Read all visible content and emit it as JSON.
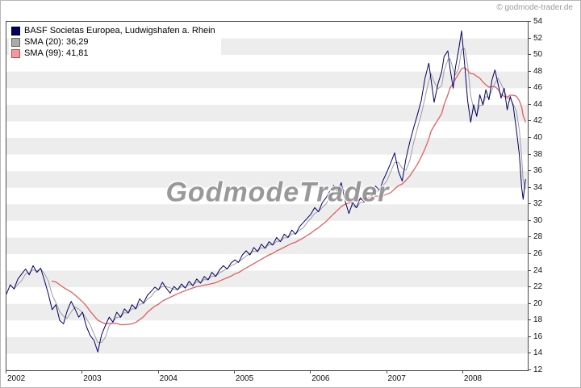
{
  "page": {
    "copyright": "© godmode-trader.de"
  },
  "legend": {
    "items": [
      {
        "label": "BASF Societas Europea, Ludwigshafen a. Rhein",
        "swatch_fill": "#000066",
        "swatch_border": "#000000"
      },
      {
        "label": "SMA (20): 36,29",
        "swatch_fill": "#aaaaaa",
        "swatch_border": "#666666"
      },
      {
        "label": "SMA (99): 41,81",
        "swatch_fill": "#f09a9a",
        "swatch_border": "#cc4444"
      }
    ]
  },
  "chart_data": {
    "type": "line",
    "title": "BASF Societas Europea, Ludwigshafen a. Rhein",
    "xlabel": "",
    "ylabel": "",
    "ylim": [
      12,
      54
    ],
    "y_tick_step": 2,
    "xlim": [
      2002,
      2008.85
    ],
    "x_ticks": [
      2002,
      2003,
      2004,
      2005,
      2006,
      2007,
      2008
    ],
    "grid": "horizontal-bands",
    "band_colors": [
      "#ffffff",
      "#ededed"
    ],
    "legend_position": "top-left",
    "watermark": "GodmodeTrader",
    "series": [
      {
        "name": "BASF Societas Europea, Ludwigshafen a. Rhein",
        "color": "#000066",
        "width": 1,
        "points": [
          [
            2002.0,
            21.2
          ],
          [
            2002.05,
            22.3
          ],
          [
            2002.1,
            21.8
          ],
          [
            2002.15,
            23.0
          ],
          [
            2002.2,
            23.6
          ],
          [
            2002.25,
            24.2
          ],
          [
            2002.3,
            23.5
          ],
          [
            2002.35,
            24.6
          ],
          [
            2002.4,
            23.8
          ],
          [
            2002.45,
            24.3
          ],
          [
            2002.5,
            22.8
          ],
          [
            2002.55,
            21.2
          ],
          [
            2002.6,
            19.3
          ],
          [
            2002.65,
            19.9
          ],
          [
            2002.7,
            18.0
          ],
          [
            2002.75,
            17.6
          ],
          [
            2002.8,
            19.2
          ],
          [
            2002.85,
            20.3
          ],
          [
            2002.9,
            19.4
          ],
          [
            2002.95,
            18.4
          ],
          [
            2003.0,
            19.0
          ],
          [
            2003.05,
            17.3
          ],
          [
            2003.1,
            16.2
          ],
          [
            2003.15,
            15.6
          ],
          [
            2003.2,
            14.2
          ],
          [
            2003.25,
            16.3
          ],
          [
            2003.3,
            17.4
          ],
          [
            2003.35,
            18.4
          ],
          [
            2003.4,
            17.8
          ],
          [
            2003.45,
            19.0
          ],
          [
            2003.5,
            18.4
          ],
          [
            2003.55,
            19.4
          ],
          [
            2003.6,
            18.9
          ],
          [
            2003.65,
            19.9
          ],
          [
            2003.7,
            19.4
          ],
          [
            2003.75,
            20.6
          ],
          [
            2003.8,
            20.1
          ],
          [
            2003.85,
            21.0
          ],
          [
            2003.9,
            21.5
          ],
          [
            2003.95,
            22.0
          ],
          [
            2004.0,
            21.7
          ],
          [
            2004.05,
            22.6
          ],
          [
            2004.1,
            21.9
          ],
          [
            2004.15,
            21.3
          ],
          [
            2004.2,
            22.1
          ],
          [
            2004.25,
            21.7
          ],
          [
            2004.3,
            22.4
          ],
          [
            2004.35,
            21.9
          ],
          [
            2004.4,
            22.7
          ],
          [
            2004.45,
            22.2
          ],
          [
            2004.5,
            23.0
          ],
          [
            2004.55,
            22.5
          ],
          [
            2004.6,
            23.3
          ],
          [
            2004.65,
            22.9
          ],
          [
            2004.7,
            23.8
          ],
          [
            2004.75,
            23.3
          ],
          [
            2004.8,
            24.1
          ],
          [
            2004.85,
            24.6
          ],
          [
            2004.9,
            24.2
          ],
          [
            2004.95,
            24.9
          ],
          [
            2005.0,
            25.3
          ],
          [
            2005.05,
            25.0
          ],
          [
            2005.1,
            25.9
          ],
          [
            2005.15,
            26.4
          ],
          [
            2005.2,
            25.9
          ],
          [
            2005.25,
            26.8
          ],
          [
            2005.3,
            26.3
          ],
          [
            2005.35,
            27.2
          ],
          [
            2005.4,
            26.7
          ],
          [
            2005.45,
            27.5
          ],
          [
            2005.5,
            27.1
          ],
          [
            2005.55,
            28.0
          ],
          [
            2005.6,
            27.5
          ],
          [
            2005.65,
            28.4
          ],
          [
            2005.7,
            28.0
          ],
          [
            2005.75,
            28.9
          ],
          [
            2005.8,
            28.4
          ],
          [
            2005.85,
            29.3
          ],
          [
            2005.9,
            29.8
          ],
          [
            2005.95,
            30.3
          ],
          [
            2006.0,
            30.8
          ],
          [
            2006.05,
            31.6
          ],
          [
            2006.1,
            31.1
          ],
          [
            2006.15,
            32.2
          ],
          [
            2006.2,
            32.8
          ],
          [
            2006.25,
            33.6
          ],
          [
            2006.3,
            34.3
          ],
          [
            2006.35,
            33.5
          ],
          [
            2006.4,
            34.6
          ],
          [
            2006.45,
            32.4
          ],
          [
            2006.5,
            30.9
          ],
          [
            2006.55,
            32.2
          ],
          [
            2006.6,
            31.6
          ],
          [
            2006.65,
            32.8
          ],
          [
            2006.7,
            32.3
          ],
          [
            2006.75,
            33.4
          ],
          [
            2006.8,
            33.0
          ],
          [
            2006.85,
            34.2
          ],
          [
            2006.9,
            33.7
          ],
          [
            2006.95,
            34.9
          ],
          [
            2007.0,
            35.9
          ],
          [
            2007.05,
            37.0
          ],
          [
            2007.1,
            38.2
          ],
          [
            2007.15,
            36.0
          ],
          [
            2007.2,
            34.8
          ],
          [
            2007.25,
            37.5
          ],
          [
            2007.3,
            39.5
          ],
          [
            2007.35,
            41.2
          ],
          [
            2007.4,
            42.8
          ],
          [
            2007.45,
            44.5
          ],
          [
            2007.5,
            47.2
          ],
          [
            2007.55,
            49.0
          ],
          [
            2007.58,
            47.0
          ],
          [
            2007.62,
            44.3
          ],
          [
            2007.67,
            46.5
          ],
          [
            2007.72,
            48.0
          ],
          [
            2007.75,
            49.8
          ],
          [
            2007.8,
            50.5
          ],
          [
            2007.83,
            48.3
          ],
          [
            2007.87,
            46.0
          ],
          [
            2007.9,
            48.5
          ],
          [
            2007.94,
            50.5
          ],
          [
            2007.98,
            52.9
          ],
          [
            2008.02,
            49.0
          ],
          [
            2008.06,
            44.5
          ],
          [
            2008.1,
            41.9
          ],
          [
            2008.14,
            44.0
          ],
          [
            2008.18,
            42.6
          ],
          [
            2008.22,
            45.2
          ],
          [
            2008.26,
            44.0
          ],
          [
            2008.3,
            45.8
          ],
          [
            2008.34,
            44.6
          ],
          [
            2008.38,
            47.0
          ],
          [
            2008.42,
            48.2
          ],
          [
            2008.46,
            46.5
          ],
          [
            2008.5,
            44.8
          ],
          [
            2008.54,
            46.0
          ],
          [
            2008.58,
            43.4
          ],
          [
            2008.62,
            45.0
          ],
          [
            2008.66,
            43.8
          ],
          [
            2008.7,
            41.0
          ],
          [
            2008.74,
            38.0
          ],
          [
            2008.77,
            34.0
          ],
          [
            2008.79,
            32.6
          ],
          [
            2008.82,
            35.0
          ]
        ]
      },
      {
        "name": "SMA (20)",
        "last_value": "36,29",
        "color": "#9e9e9e",
        "width": 1,
        "derived_from": 0,
        "smooth_window": 3
      },
      {
        "name": "SMA (99)",
        "last_value": "41,81",
        "color": "#e06060",
        "width": 1.3,
        "derived_from": 0,
        "smooth_window": 13
      }
    ]
  }
}
